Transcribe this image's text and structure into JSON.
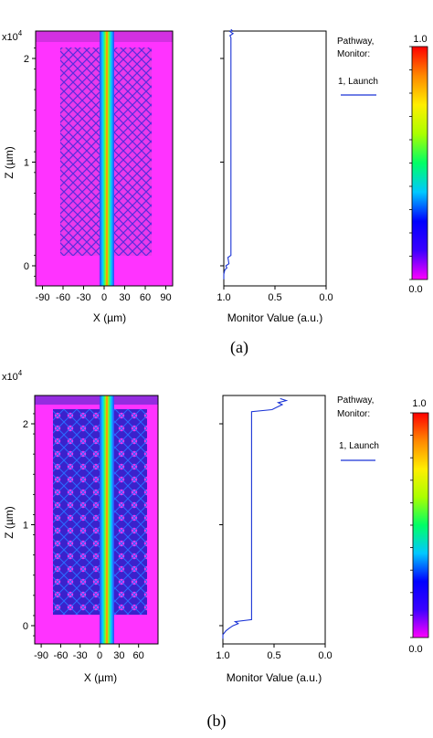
{
  "colors": {
    "background_field": "#ff33ff",
    "mode_pattern": "#4a2ad8",
    "monitor_line": "#1a33d6",
    "colorbar_stops": [
      "#ff00ff",
      "#3b00ff",
      "#0000ff",
      "#00c8ff",
      "#00ff66",
      "#aaff00",
      "#ffee00",
      "#ff8800",
      "#ff0000"
    ]
  },
  "panels": [
    {
      "caption": "(a)",
      "field": {
        "exponent_label": "x10",
        "exponent_power": "4",
        "y_label": "Z (µm)",
        "x_label": "X (µm)",
        "x_ticks": [
          "-90",
          "-60",
          "-30",
          "0",
          "30",
          "60",
          "90"
        ],
        "y_ticks": [
          "0",
          "1",
          "2"
        ]
      },
      "monitor": {
        "x_label": "Monitor Value (a.u.)",
        "x_ticks": [
          "1.0",
          "0.5",
          "0.0"
        ],
        "legend_title_1": "Pathway,",
        "legend_title_2": "Monitor:",
        "legend_entry": "1, Launch"
      },
      "colorbar": {
        "top_label": "1.0",
        "bottom_label": "0.0"
      }
    },
    {
      "caption": "(b)",
      "field": {
        "exponent_label": "x10",
        "exponent_power": "4",
        "y_label": "Z (µm)",
        "x_label": "X (µm)",
        "x_ticks": [
          "-90",
          "-60",
          "-30",
          "0",
          "30",
          "60"
        ],
        "y_ticks": [
          "0",
          "1",
          "2"
        ]
      },
      "monitor": {
        "x_label": "Monitor Value (a.u.)",
        "x_ticks": [
          "1.0",
          "0.5",
          "0.0"
        ],
        "legend_title_1": "Pathway,",
        "legend_title_2": "Monitor:",
        "legend_entry": "1, Launch"
      },
      "colorbar": {
        "top_label": "1.0",
        "bottom_label": "0.0"
      }
    }
  ],
  "chart_data": [
    {
      "type": "heatmap",
      "panel": "(a)",
      "xlabel": "X (µm)",
      "ylabel": "Z (µm)",
      "xlim": [
        -100,
        100
      ],
      "ylim": [
        -1600,
        23000
      ],
      "value_range": [
        0.0,
        1.0
      ]
    },
    {
      "type": "line",
      "panel": "(a)",
      "xlabel": "Monitor Value (a.u.)",
      "ylabel": "Z (µm)",
      "xlim": [
        1.0,
        0.0
      ],
      "ylim": [
        -1600,
        23000
      ],
      "series": [
        {
          "name": "1, Launch",
          "x": [
            1.0,
            1.0,
            0.99,
            0.97,
            0.98,
            0.95,
            0.96,
            0.93,
            0.93,
            0.93,
            0.93,
            0.94,
            0.91,
            0.94,
            0.92,
            0.93
          ],
          "y": [
            -1300,
            -800,
            -400,
            -200,
            0,
            200,
            800,
            1000,
            20000,
            21500,
            22000,
            22200,
            22400,
            22600,
            22700,
            22800
          ]
        }
      ]
    },
    {
      "type": "heatmap",
      "panel": "(b)",
      "xlabel": "X (µm)",
      "ylabel": "Z (µm)",
      "xlim": [
        -100,
        90
      ],
      "ylim": [
        -1600,
        23000
      ],
      "value_range": [
        0.0,
        1.0
      ]
    },
    {
      "type": "line",
      "panel": "(b)",
      "xlabel": "Monitor Value (a.u.)",
      "ylabel": "Z (µm)",
      "xlim": [
        1.0,
        0.0
      ],
      "ylim": [
        -1600,
        23000
      ],
      "series": [
        {
          "name": "1, Launch",
          "x": [
            1.0,
            1.0,
            0.97,
            0.93,
            0.9,
            0.85,
            0.88,
            0.72,
            0.72,
            0.72,
            0.52,
            0.48,
            0.42,
            0.46,
            0.38,
            0.44
          ],
          "y": [
            -1300,
            -900,
            -500,
            -200,
            0,
            200,
            400,
            600,
            20800,
            21200,
            21400,
            21600,
            21900,
            22100,
            22300,
            22500
          ]
        }
      ]
    }
  ]
}
